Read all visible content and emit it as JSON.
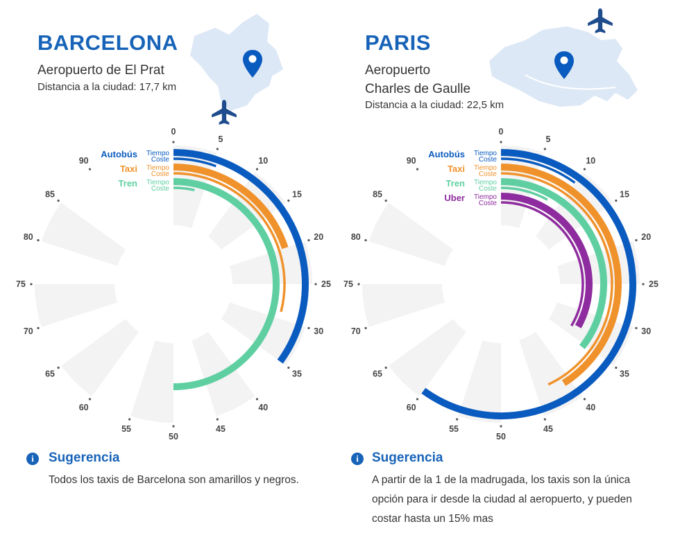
{
  "colors": {
    "bus": "#0a5bbf",
    "taxi": "#f0922b",
    "train": "#5fcfa2",
    "uber": "#8e2b9e",
    "brand": "#1763b8",
    "sector": "#f3f3f3",
    "map": "#dde8f6"
  },
  "panels": [
    {
      "city": "BARCELONA",
      "airport": "Aeropuerto de El Prat",
      "distance": "Distancia a la ciudad: 17,7 km",
      "tip_title": "Sugerencia",
      "tip_text": "Todos los taxis de Barcelona son amarillos y negros.",
      "icons": {
        "pin": "map-pin-icon",
        "plane": "airplane-icon",
        "info": "info-icon"
      },
      "tip_icon_glyph": "i"
    },
    {
      "city": "PARIS",
      "airport": "Aeropuerto\nCharles de Gaulle",
      "distance": "Distancia a la ciudad: 22,5 km",
      "tip_title": "Sugerencia",
      "tip_text": "A partir de la 1 de la madrugada, los taxis son la única opción para ir desde la ciudad al aeropuerto, y pueden costar hasta un 15% mas",
      "icons": {
        "pin": "map-pin-icon",
        "plane": "airplane-icon",
        "info": "info-icon"
      },
      "tip_icon_glyph": "i"
    }
  ],
  "chart_data": [
    {
      "type": "radial-bar",
      "title": "BARCELONA",
      "scale": {
        "min": 0,
        "max": 90,
        "full_turn": 100,
        "ticks": [
          0,
          5,
          10,
          15,
          20,
          25,
          30,
          35,
          40,
          45,
          50,
          55,
          60,
          65,
          70,
          75,
          80,
          85,
          90
        ]
      },
      "groups": [
        {
          "name": "Autobús",
          "key": "bus",
          "series": [
            {
              "name": "Tiempo",
              "value": 35
            },
            {
              "name": "Coste",
              "value": 5.5
            }
          ]
        },
        {
          "name": "Taxi",
          "key": "taxi",
          "series": [
            {
              "name": "Tiempo",
              "value": 20
            },
            {
              "name": "Coste",
              "value": 29
            }
          ]
        },
        {
          "name": "Tren",
          "key": "train",
          "series": [
            {
              "name": "Tiempo",
              "value": 50
            },
            {
              "name": "Coste",
              "value": 3.5
            }
          ]
        }
      ]
    },
    {
      "type": "radial-bar",
      "title": "PARIS",
      "scale": {
        "min": 0,
        "max": 90,
        "full_turn": 100,
        "ticks": [
          0,
          5,
          10,
          15,
          20,
          25,
          30,
          35,
          40,
          45,
          50,
          55,
          60,
          65,
          70,
          75,
          80,
          85,
          90
        ]
      },
      "groups": [
        {
          "name": "Autobús",
          "key": "bus",
          "series": [
            {
              "name": "Tiempo",
              "value": 60
            },
            {
              "name": "Coste",
              "value": 10
            }
          ]
        },
        {
          "name": "Taxi",
          "key": "taxi",
          "series": [
            {
              "name": "Tiempo",
              "value": 41
            },
            {
              "name": "Coste",
              "value": 43
            }
          ]
        },
        {
          "name": "Tren",
          "key": "train",
          "series": [
            {
              "name": "Tiempo",
              "value": 35.5
            },
            {
              "name": "Coste",
              "value": 8
            }
          ]
        },
        {
          "name": "Uber",
          "key": "uber",
          "series": [
            {
              "name": "Tiempo",
              "value": 33
            },
            {
              "name": "Coste",
              "value": 33.5
            }
          ]
        }
      ]
    }
  ]
}
